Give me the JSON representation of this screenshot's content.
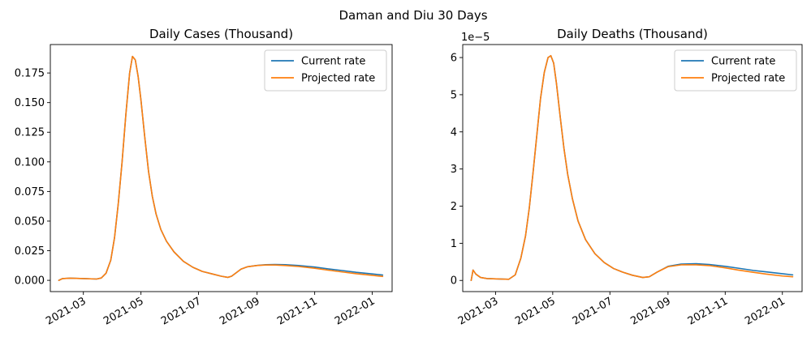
{
  "figure": {
    "suptitle": "Daman and Diu 30 Days"
  },
  "chart_data": [
    {
      "type": "line",
      "title": "Daily Cases (Thousand)",
      "xlabel": "",
      "ylabel": "",
      "x_type": "date",
      "xlim": [
        "2021-01-25",
        "2022-01-22"
      ],
      "ylim": [
        -0.0095,
        0.199
      ],
      "x_ticks": [
        "2021-03",
        "2021-05",
        "2021-07",
        "2021-09",
        "2021-11",
        "2022-01"
      ],
      "y_ticks": [
        0.0,
        0.025,
        0.05,
        0.075,
        0.1,
        0.125,
        0.15,
        0.175
      ],
      "y_tick_labels": [
        "0.000",
        "0.025",
        "0.050",
        "0.075",
        "0.100",
        "0.125",
        "0.150",
        "0.175"
      ],
      "y_offset_label": "",
      "grid": false,
      "legend_position": "top-right",
      "series": [
        {
          "name": "Current rate",
          "color": "#1f77b4",
          "x": [
            "2021-02-03",
            "2021-02-07",
            "2021-02-15",
            "2021-03-01",
            "2021-03-15",
            "2021-03-20",
            "2021-03-25",
            "2021-03-30",
            "2021-04-03",
            "2021-04-07",
            "2021-04-11",
            "2021-04-15",
            "2021-04-19",
            "2021-04-22",
            "2021-04-25",
            "2021-04-28",
            "2021-05-01",
            "2021-05-05",
            "2021-05-09",
            "2021-05-13",
            "2021-05-17",
            "2021-05-22",
            "2021-05-28",
            "2021-06-05",
            "2021-06-15",
            "2021-06-25",
            "2021-07-05",
            "2021-07-15",
            "2021-07-25",
            "2021-08-01",
            "2021-08-05",
            "2021-08-10",
            "2021-08-15",
            "2021-08-22",
            "2021-09-01",
            "2021-09-10",
            "2021-09-20",
            "2021-10-01",
            "2021-10-15",
            "2021-11-01",
            "2021-11-15",
            "2021-12-01",
            "2021-12-15",
            "2022-01-01",
            "2022-01-12"
          ],
          "values": [
            0.0,
            0.0015,
            0.0018,
            0.0015,
            0.0011,
            0.002,
            0.006,
            0.017,
            0.036,
            0.065,
            0.1,
            0.14,
            0.175,
            0.189,
            0.186,
            0.172,
            0.152,
            0.121,
            0.092,
            0.071,
            0.056,
            0.043,
            0.033,
            0.024,
            0.016,
            0.011,
            0.0075,
            0.0055,
            0.0035,
            0.0025,
            0.0035,
            0.0065,
            0.0095,
            0.0115,
            0.0126,
            0.0132,
            0.0134,
            0.0132,
            0.0125,
            0.0112,
            0.0097,
            0.0082,
            0.0068,
            0.0054,
            0.0045
          ]
        },
        {
          "name": "Projected rate",
          "color": "#ff7f0e",
          "x": [
            "2021-02-03",
            "2021-02-07",
            "2021-02-15",
            "2021-03-01",
            "2021-03-15",
            "2021-03-20",
            "2021-03-25",
            "2021-03-30",
            "2021-04-03",
            "2021-04-07",
            "2021-04-11",
            "2021-04-15",
            "2021-04-19",
            "2021-04-22",
            "2021-04-25",
            "2021-04-28",
            "2021-05-01",
            "2021-05-05",
            "2021-05-09",
            "2021-05-13",
            "2021-05-17",
            "2021-05-22",
            "2021-05-28",
            "2021-06-05",
            "2021-06-15",
            "2021-06-25",
            "2021-07-05",
            "2021-07-15",
            "2021-07-25",
            "2021-08-01",
            "2021-08-05",
            "2021-08-10",
            "2021-08-15",
            "2021-08-22",
            "2021-09-01",
            "2021-09-10",
            "2021-09-20",
            "2021-10-01",
            "2021-10-15",
            "2021-11-01",
            "2021-11-15",
            "2021-12-01",
            "2021-12-15",
            "2022-01-01",
            "2022-01-12"
          ],
          "values": [
            0.0,
            0.0015,
            0.0018,
            0.0015,
            0.0011,
            0.002,
            0.006,
            0.017,
            0.036,
            0.065,
            0.1,
            0.14,
            0.175,
            0.189,
            0.186,
            0.172,
            0.152,
            0.121,
            0.092,
            0.071,
            0.056,
            0.043,
            0.033,
            0.024,
            0.016,
            0.011,
            0.0075,
            0.0055,
            0.0035,
            0.0025,
            0.0035,
            0.0065,
            0.0095,
            0.0115,
            0.0125,
            0.0129,
            0.0129,
            0.0125,
            0.0117,
            0.0102,
            0.0086,
            0.007,
            0.0056,
            0.0042,
            0.0033
          ]
        }
      ]
    },
    {
      "type": "line",
      "title": "Daily Deaths (Thousand)",
      "xlabel": "",
      "ylabel": "",
      "x_type": "date",
      "xlim": [
        "2021-01-25",
        "2022-01-22"
      ],
      "ylim": [
        -3e-06,
        6.35e-05
      ],
      "x_ticks": [
        "2021-03",
        "2021-05",
        "2021-07",
        "2021-09",
        "2021-11",
        "2022-01"
      ],
      "y_ticks": [
        0,
        1e-05,
        2e-05,
        3e-05,
        4e-05,
        5e-05,
        6e-05
      ],
      "y_tick_labels": [
        "0",
        "1",
        "2",
        "3",
        "4",
        "5",
        "6"
      ],
      "y_offset_label": "1e−5",
      "grid": false,
      "legend_position": "top-right",
      "series": [
        {
          "name": "Current rate",
          "color": "#1f77b4",
          "x": [
            "2021-02-03",
            "2021-02-05",
            "2021-02-08",
            "2021-02-13",
            "2021-02-20",
            "2021-03-05",
            "2021-03-15",
            "2021-03-22",
            "2021-03-28",
            "2021-04-02",
            "2021-04-06",
            "2021-04-10",
            "2021-04-14",
            "2021-04-18",
            "2021-04-22",
            "2021-04-26",
            "2021-04-29",
            "2021-05-02",
            "2021-05-05",
            "2021-05-09",
            "2021-05-13",
            "2021-05-17",
            "2021-05-22",
            "2021-05-28",
            "2021-06-05",
            "2021-06-15",
            "2021-06-25",
            "2021-07-05",
            "2021-07-15",
            "2021-07-25",
            "2021-08-05",
            "2021-08-12",
            "2021-08-20",
            "2021-09-01",
            "2021-09-15",
            "2021-10-01",
            "2021-10-15",
            "2021-11-01",
            "2021-11-15",
            "2021-12-01",
            "2021-12-15",
            "2022-01-01",
            "2022-01-12"
          ],
          "values": [
            0.0,
            2.8e-06,
            1.7e-06,
            8e-07,
            5e-07,
            4e-07,
            3e-07,
            1.5e-06,
            6e-06,
            1.2e-05,
            1.95e-05,
            2.9e-05,
            3.9e-05,
            4.9e-05,
            5.6e-05,
            6e-05,
            6.05e-05,
            5.85e-05,
            5.3e-05,
            4.4e-05,
            3.55e-05,
            2.85e-05,
            2.2e-05,
            1.6e-05,
            1.1e-05,
            7.2e-06,
            4.8e-06,
            3.2e-06,
            2.2e-06,
            1.4e-06,
            8e-07,
            1e-06,
            2.2e-06,
            3.8e-06,
            4.4e-06,
            4.5e-06,
            4.3e-06,
            3.8e-06,
            3.3e-06,
            2.7e-06,
            2.3e-06,
            1.8e-06,
            1.5e-06
          ]
        },
        {
          "name": "Projected rate",
          "color": "#ff7f0e",
          "x": [
            "2021-02-03",
            "2021-02-05",
            "2021-02-08",
            "2021-02-13",
            "2021-02-20",
            "2021-03-05",
            "2021-03-15",
            "2021-03-22",
            "2021-03-28",
            "2021-04-02",
            "2021-04-06",
            "2021-04-10",
            "2021-04-14",
            "2021-04-18",
            "2021-04-22",
            "2021-04-26",
            "2021-04-29",
            "2021-05-02",
            "2021-05-05",
            "2021-05-09",
            "2021-05-13",
            "2021-05-17",
            "2021-05-22",
            "2021-05-28",
            "2021-06-05",
            "2021-06-15",
            "2021-06-25",
            "2021-07-05",
            "2021-07-15",
            "2021-07-25",
            "2021-08-05",
            "2021-08-12",
            "2021-08-20",
            "2021-09-01",
            "2021-09-15",
            "2021-10-01",
            "2021-10-15",
            "2021-11-01",
            "2021-11-15",
            "2021-12-01",
            "2021-12-15",
            "2022-01-01",
            "2022-01-12"
          ],
          "values": [
            0.0,
            2.8e-06,
            1.7e-06,
            8e-07,
            5e-07,
            4e-07,
            3e-07,
            1.5e-06,
            6e-06,
            1.2e-05,
            1.95e-05,
            2.9e-05,
            3.9e-05,
            4.9e-05,
            5.6e-05,
            6e-05,
            6.05e-05,
            5.85e-05,
            5.3e-05,
            4.4e-05,
            3.55e-05,
            2.85e-05,
            2.2e-05,
            1.6e-05,
            1.1e-05,
            7.2e-06,
            4.8e-06,
            3.2e-06,
            2.2e-06,
            1.4e-06,
            8e-07,
            1e-06,
            2.2e-06,
            3.7e-06,
            4.2e-06,
            4.2e-06,
            4e-06,
            3.4e-06,
            2.8e-06,
            2.2e-06,
            1.7e-06,
            1.2e-06,
            1e-06
          ]
        }
      ]
    }
  ]
}
